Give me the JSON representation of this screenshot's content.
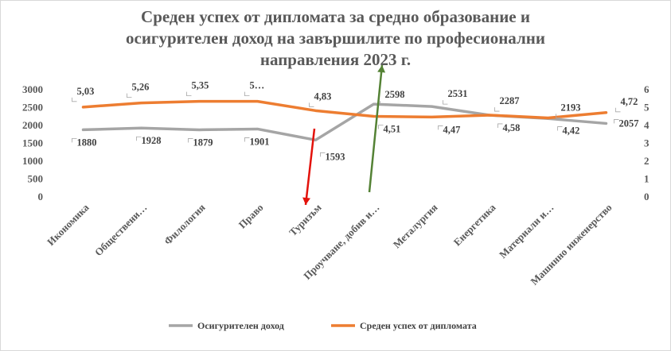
{
  "chart_data": {
    "type": "line",
    "title_lines": [
      "Среден успех от дипломата за средно образование и",
      "осигурителен доход на завършилите по професионални",
      "направления 2023 г."
    ],
    "categories": [
      "Икономика",
      "Обществени…",
      "Филология",
      "Право",
      "Туризъм",
      "Проучване, добив и…",
      "Металургия",
      "Енергетика",
      "Материали и…",
      "Машинно инженерство"
    ],
    "series": [
      {
        "name": "Осигурителен доход",
        "axis": "left",
        "color": "#a5a5a5",
        "values": [
          1880,
          1928,
          1879,
          1901,
          1593,
          2598,
          2531,
          2287,
          2193,
          2057
        ],
        "labels": [
          "1880",
          "1928",
          "1879",
          "1901",
          "1593",
          "2598",
          "2531",
          "2287",
          "2193",
          "2057"
        ]
      },
      {
        "name": "Среден успех от дипломата",
        "axis": "right",
        "color": "#ed7d31",
        "values": [
          5.03,
          5.26,
          5.35,
          5.35,
          4.83,
          4.51,
          4.47,
          4.58,
          4.42,
          4.72
        ],
        "labels": [
          "5,03",
          "5,26",
          "5,35",
          "5…",
          "4,83",
          "4,51",
          "4,47",
          "4,58",
          "4,42",
          "4,72"
        ]
      }
    ],
    "y_left": {
      "min": 0,
      "max": 3000,
      "step": 500,
      "ticks": [
        "0",
        "500",
        "1000",
        "1500",
        "2000",
        "2500",
        "3000"
      ]
    },
    "y_right": {
      "min": 0,
      "max": 6,
      "step": 1,
      "ticks": [
        "0",
        "1",
        "2",
        "3",
        "4",
        "5",
        "6"
      ]
    },
    "grid": false,
    "legend_position": "bottom",
    "annotations": [
      {
        "type": "arrow",
        "direction": "down",
        "color": "#e3120b",
        "category": "Туризъм"
      },
      {
        "type": "arrow",
        "direction": "up",
        "color": "#548235",
        "category": "Проучване, добив и…"
      }
    ]
  }
}
